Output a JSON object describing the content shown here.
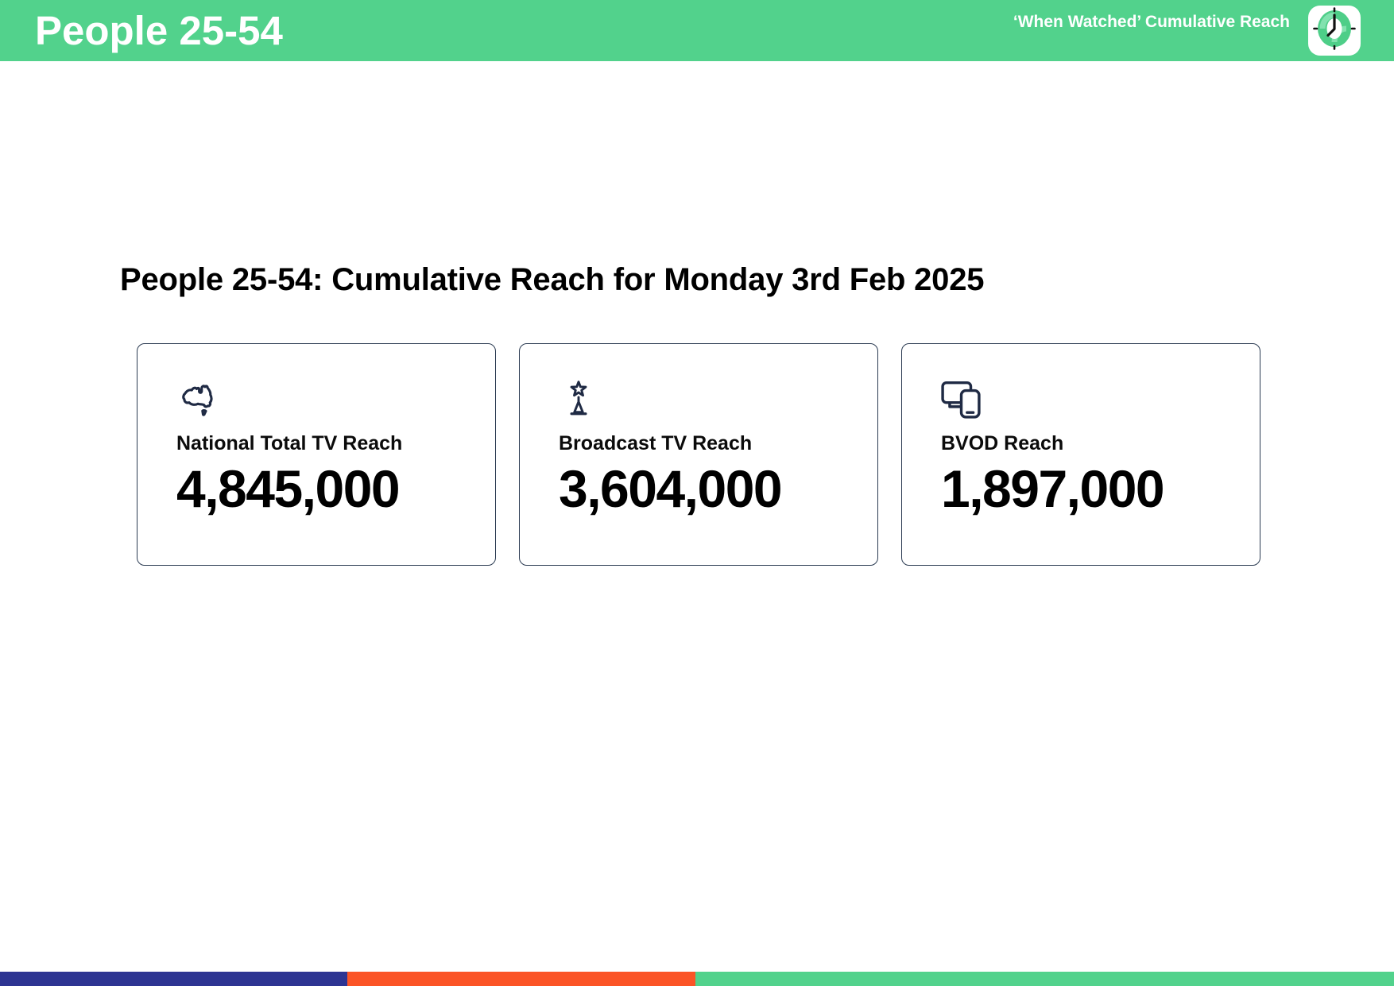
{
  "header": {
    "title": "People 25-54",
    "subtitle": "‘When Watched’ Cumulative Reach",
    "logo_icon": "clock-icon",
    "background": "#52d28c",
    "text_color": "#ffffff"
  },
  "main": {
    "heading": "People 25-54: Cumulative Reach for Monday 3rd Feb 2025",
    "cards": [
      {
        "icon": "australia-map-icon",
        "label": "National Total TV Reach",
        "value": "4,845,000"
      },
      {
        "icon": "broadcast-tower-star-icon",
        "label": "Broadcast TV Reach",
        "value": "3,604,000"
      },
      {
        "icon": "devices-icon",
        "label": "BVOD Reach",
        "value": "1,897,000"
      }
    ],
    "card_border_color": "#2b3b52",
    "icon_color": "#1f2a44"
  },
  "footer": {
    "segments": [
      {
        "name": "blue",
        "color": "#2d3492",
        "width_pct": 24.91
      },
      {
        "name": "orange",
        "color": "#fb5426",
        "width_pct": 24.97
      },
      {
        "name": "green",
        "color": "#52d28c",
        "width_pct": 50.12
      }
    ]
  },
  "chart_data": {
    "type": "table",
    "title": "People 25-54: Cumulative Reach for Monday 3rd Feb 2025",
    "categories": [
      "National Total TV Reach",
      "Broadcast TV Reach",
      "BVOD Reach"
    ],
    "values": [
      4845000,
      3604000,
      1897000
    ]
  }
}
